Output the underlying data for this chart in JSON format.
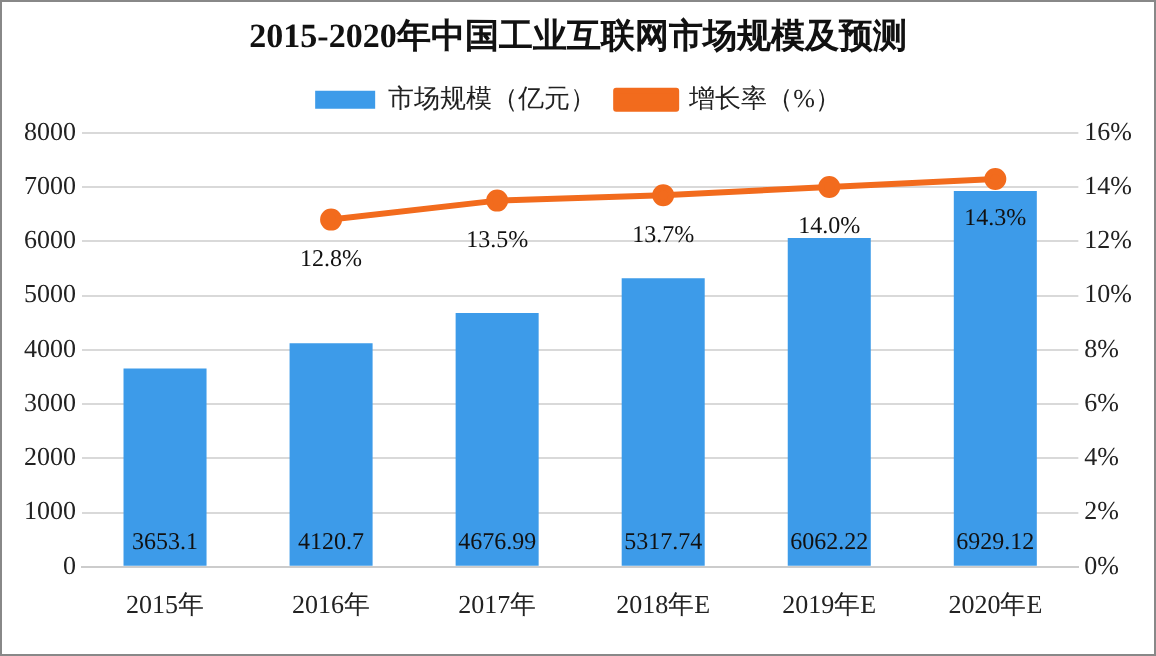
{
  "chart_data": {
    "type": "bar",
    "title": "2015-2020年中国工业互联网市场规模及预测",
    "categories": [
      "2015年",
      "2016年",
      "2017年",
      "2018年E",
      "2019年E",
      "2020年E"
    ],
    "series": [
      {
        "name": "市场规模（亿元）",
        "color": "#3d9be9",
        "values": [
          3653.1,
          4120.7,
          4676.99,
          5317.74,
          6062.22,
          6929.12
        ],
        "value_labels": [
          "3653.1",
          "4120.7",
          "4676.99",
          "5317.74",
          "6062.22",
          "6929.12"
        ]
      },
      {
        "name": "增长率（%）",
        "type": "line",
        "axis": "y2",
        "color": "#f26b1d",
        "values": [
          null,
          12.8,
          13.5,
          13.7,
          14.0,
          14.3
        ],
        "value_labels": [
          null,
          "12.8%",
          "13.5%",
          "13.7%",
          "14.0%",
          "14.3%"
        ]
      }
    ],
    "ylim": [
      0,
      8000
    ],
    "yticks": [
      0,
      1000,
      2000,
      3000,
      4000,
      5000,
      6000,
      7000,
      8000
    ],
    "y2lim": [
      0,
      16
    ],
    "y2ticks": [
      {
        "value": 0,
        "label": "0%"
      },
      {
        "value": 2,
        "label": "2%"
      },
      {
        "value": 4,
        "label": "4%"
      },
      {
        "value": 6,
        "label": "6%"
      },
      {
        "value": 8,
        "label": "8%"
      },
      {
        "value": 10,
        "label": "10%"
      },
      {
        "value": 12,
        "label": "12%"
      },
      {
        "value": 14,
        "label": "14%"
      },
      {
        "value": 16,
        "label": "16%"
      }
    ],
    "grid": "y",
    "legend": "top",
    "marker": "circle"
  }
}
